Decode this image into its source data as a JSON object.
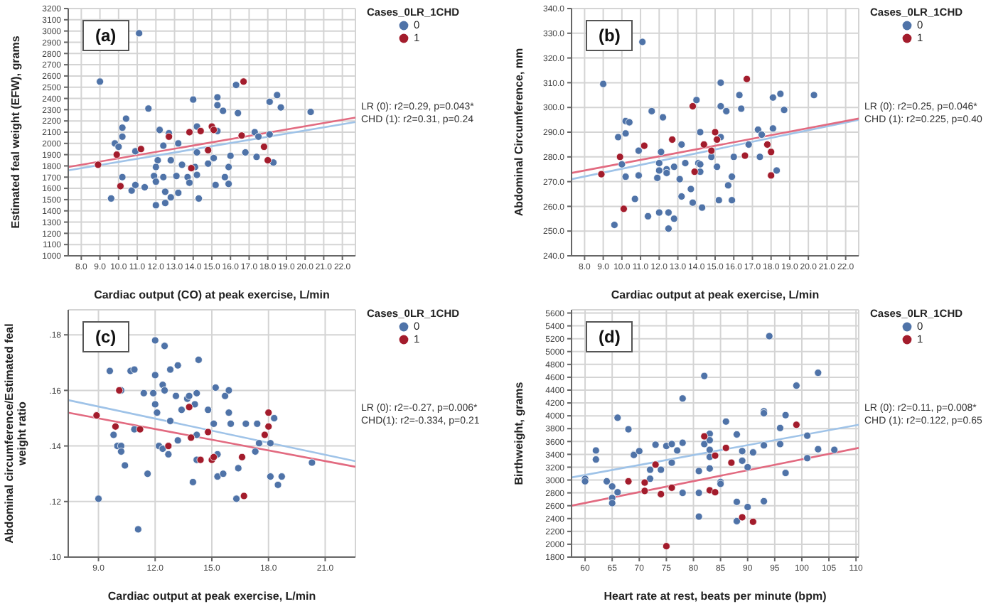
{
  "chart_data": [
    {
      "type": "scatter",
      "title": "(a)",
      "xlabel": "Cardiac output (CO) at peak exercise, L/min",
      "ylabel": "Estimated feal weight (EFW), grams",
      "legend_title": "Cases_0LR_1CHD",
      "legend": "top right",
      "grid": true,
      "marker": "circle",
      "xlim": [
        7.3,
        22.7
      ],
      "xticks": [
        {
          "value": 8,
          "label": "8.0"
        },
        {
          "value": 9,
          "label": "9.0"
        },
        {
          "value": 10,
          "label": "10.0"
        },
        {
          "value": 11,
          "label": "11.0"
        },
        {
          "value": 12,
          "label": "12.0"
        },
        {
          "value": 13,
          "label": "13.0"
        },
        {
          "value": 14,
          "label": "14.0"
        },
        {
          "value": 15,
          "label": "15.0"
        },
        {
          "value": 16,
          "label": "16.0"
        },
        {
          "value": 17,
          "label": "17.0"
        },
        {
          "value": 18,
          "label": "18.0"
        },
        {
          "value": 19,
          "label": "19.0"
        },
        {
          "value": 20,
          "label": "20.0"
        },
        {
          "value": 21,
          "label": "21.0"
        },
        {
          "value": 22,
          "label": "22.0"
        }
      ],
      "ylim": [
        1000,
        3200
      ],
      "yticks": [
        1000,
        1100,
        1200,
        1300,
        1400,
        1500,
        1600,
        1700,
        1800,
        1900,
        2000,
        2100,
        2200,
        2300,
        2400,
        2500,
        2600,
        2700,
        2800,
        2900,
        3000,
        3100,
        3200
      ],
      "annotations": [
        "LR (0): r2=0.29, p=0.043*",
        "CHD (1): r2=0.31, p=0.24"
      ],
      "series": [
        {
          "name": "0",
          "color": "#4f73a8",
          "x": [
            9.0,
            11.1,
            9.6,
            9.8,
            10.0,
            10.2,
            10.2,
            10.4,
            10.2,
            10.7,
            10.9,
            10.9,
            11.4,
            11.6,
            11.9,
            12.0,
            12.0,
            12.0,
            12.1,
            12.2,
            12.4,
            12.4,
            12.5,
            12.5,
            12.7,
            12.8,
            12.8,
            13.1,
            13.2,
            13.2,
            13.4,
            13.7,
            13.8,
            14.0,
            14.1,
            14.2,
            14.2,
            14.2,
            14.3,
            14.8,
            15.1,
            15.2,
            15.3,
            15.3,
            15.3,
            15.6,
            15.7,
            15.9,
            15.9,
            16.0,
            16.3,
            16.4,
            16.8,
            17.3,
            17.4,
            17.5,
            18.1,
            18.1,
            18.3,
            18.5,
            18.7,
            20.3
          ],
          "values": [
            2550,
            2980,
            1510,
            2000,
            1970,
            2060,
            2140,
            2220,
            1700,
            1580,
            1630,
            1930,
            1610,
            2310,
            1710,
            1660,
            1790,
            1450,
            1850,
            2120,
            1700,
            1980,
            1570,
            1470,
            2090,
            1850,
            1520,
            1710,
            2000,
            1560,
            1810,
            1700,
            1650,
            2390,
            1790,
            2150,
            1920,
            1720,
            1510,
            1820,
            1870,
            1630,
            2410,
            2340,
            2110,
            2290,
            1700,
            1640,
            1790,
            1890,
            2520,
            2270,
            1920,
            2100,
            1880,
            2060,
            2370,
            2080,
            1830,
            2430,
            2320,
            2280
          ]
        },
        {
          "name": "1",
          "color": "#a31c2c",
          "x": [
            8.9,
            9.9,
            10.1,
            11.2,
            12.7,
            13.8,
            13.9,
            14.4,
            14.8,
            15.0,
            15.1,
            16.6,
            16.7,
            17.8,
            18.0
          ],
          "values": [
            1810,
            1900,
            1620,
            1950,
            2060,
            2100,
            1780,
            2110,
            1940,
            2150,
            2120,
            2070,
            2550,
            1970,
            1850
          ]
        },
        {
          "type": "line",
          "marker": "none",
          "color": "#9fc3e8",
          "x": [
            7.3,
            22.7
          ],
          "values": [
            1760,
            2190
          ]
        },
        {
          "type": "line",
          "marker": "none",
          "color": "#e26a80",
          "x": [
            7.3,
            22.7
          ],
          "values": [
            1790,
            2230
          ]
        }
      ]
    },
    {
      "type": "scatter",
      "title": "(b)",
      "xlabel": "Cardiac output at peak exercise, L/min",
      "ylabel": "Abdominal Circumference, mm",
      "legend_title": "Cases_0LR_1CHD",
      "legend": "top right",
      "grid": true,
      "marker": "circle",
      "xlim": [
        7.3,
        22.7
      ],
      "xticks": [
        {
          "value": 8,
          "label": "8.0"
        },
        {
          "value": 9,
          "label": "9.0"
        },
        {
          "value": 10,
          "label": "10.0"
        },
        {
          "value": 11,
          "label": "11.0"
        },
        {
          "value": 12,
          "label": "12.0"
        },
        {
          "value": 13,
          "label": "13.0"
        },
        {
          "value": 14,
          "label": "14.0"
        },
        {
          "value": 15,
          "label": "15.0"
        },
        {
          "value": 16,
          "label": "16.0"
        },
        {
          "value": 17,
          "label": "17.0"
        },
        {
          "value": 18,
          "label": "18.0"
        },
        {
          "value": 19,
          "label": "19.0"
        },
        {
          "value": 20,
          "label": "20.0"
        },
        {
          "value": 21,
          "label": "21.0"
        },
        {
          "value": 22,
          "label": "22.0"
        }
      ],
      "ylim": [
        240,
        340
      ],
      "yticks": [
        {
          "value": 240,
          "label": "240.0"
        },
        {
          "value": 250,
          "label": "250.0"
        },
        {
          "value": 260,
          "label": "260.0"
        },
        {
          "value": 270,
          "label": "270.0"
        },
        {
          "value": 280,
          "label": "280.0"
        },
        {
          "value": 290,
          "label": "290.0"
        },
        {
          "value": 300,
          "label": "300.0"
        },
        {
          "value": 310,
          "label": "310.0"
        },
        {
          "value": 320,
          "label": "320.0"
        },
        {
          "value": 330,
          "label": "330.0"
        },
        {
          "value": 340,
          "label": "340.0"
        }
      ],
      "annotations": [
        "LR (0): r2=0.25, p=0.046*",
        "CHD (1): r2=0.225, p=0.40"
      ],
      "series": [
        {
          "name": "0",
          "color": "#4f73a8",
          "x": [
            9.0,
            11.1,
            9.6,
            9.8,
            10.0,
            10.2,
            10.2,
            10.4,
            10.2,
            10.7,
            10.9,
            10.9,
            11.4,
            11.6,
            11.9,
            12.0,
            12.0,
            12.0,
            12.1,
            12.2,
            12.4,
            12.4,
            12.5,
            12.5,
            12.8,
            12.8,
            13.1,
            13.2,
            13.2,
            13.4,
            13.7,
            13.8,
            14.0,
            14.1,
            14.2,
            14.2,
            14.2,
            14.3,
            14.8,
            15.1,
            15.2,
            15.3,
            15.3,
            15.3,
            15.6,
            15.7,
            15.9,
            15.9,
            16.0,
            16.3,
            16.4,
            16.8,
            17.3,
            17.4,
            17.5,
            18.1,
            18.1,
            18.3,
            18.5,
            18.7,
            20.3
          ],
          "values": [
            309.5,
            326.5,
            252.5,
            288,
            277,
            294.5,
            289.5,
            294,
            272,
            263,
            272.5,
            282.5,
            256,
            298.5,
            271.5,
            274.5,
            277.5,
            257.5,
            282,
            296,
            275,
            273.5,
            257.5,
            251,
            276,
            255,
            271,
            285,
            264,
            277.5,
            267,
            261.5,
            303,
            277.5,
            290,
            277,
            274,
            259.5,
            280,
            276,
            262.5,
            310,
            300.5,
            288,
            298.5,
            268.5,
            272,
            262.5,
            280,
            305,
            299.5,
            285,
            291,
            280,
            289,
            304,
            291.5,
            274.5,
            305.5,
            299,
            305
          ]
        },
        {
          "name": "1",
          "color": "#a31c2c",
          "x": [
            8.9,
            9.9,
            10.1,
            11.2,
            12.7,
            13.8,
            13.9,
            14.4,
            14.8,
            15.0,
            15.1,
            16.6,
            16.7,
            17.8,
            18.0,
            18.0
          ],
          "values": [
            273,
            280,
            259,
            284.5,
            287,
            300.5,
            274,
            285,
            282.5,
            290,
            287,
            280.5,
            311.5,
            285,
            282,
            272.5
          ]
        },
        {
          "type": "line",
          "marker": "none",
          "color": "#9fc3e8",
          "x": [
            7.3,
            22.7
          ],
          "values": [
            271,
            295
          ]
        },
        {
          "type": "line",
          "marker": "none",
          "color": "#e26a80",
          "x": [
            7.3,
            22.7
          ],
          "values": [
            273.5,
            295.5
          ]
        }
      ]
    },
    {
      "type": "scatter",
      "title": "(c)",
      "xlabel": "Cardiac output at peak exercise, L/min",
      "ylabel": "Abdominal circumference/Estimated feal weight ratio",
      "legend_title": "Cases_0LR_1CHD",
      "legend": "top right",
      "grid": true,
      "marker": "circle",
      "xlim": [
        7.4,
        22.6
      ],
      "xticks": [
        {
          "value": 9,
          "label": "9.0"
        },
        {
          "value": 12,
          "label": "12.0"
        },
        {
          "value": 15,
          "label": "15.0"
        },
        {
          "value": 18,
          "label": "18.0"
        },
        {
          "value": 21,
          "label": "21.0"
        }
      ],
      "ylim": [
        0.1,
        0.189
      ],
      "yticks": [
        {
          "value": 0.1,
          "label": ".10"
        },
        {
          "value": 0.12,
          "label": ".12"
        },
        {
          "value": 0.14,
          "label": ".14"
        },
        {
          "value": 0.16,
          "label": ".16"
        },
        {
          "value": 0.18,
          "label": ".18"
        }
      ],
      "annotations": [
        "LR (0): r2=-0.27, p=0.006*",
        "CHD(1): r2=-0.334, p=0.21"
      ],
      "series": [
        {
          "name": "0",
          "color": "#4f73a8",
          "x": [
            9.0,
            9.6,
            9.8,
            10.0,
            10.2,
            10.2,
            10.4,
            10.2,
            10.7,
            10.9,
            10.9,
            11.1,
            11.4,
            11.6,
            11.9,
            12.0,
            12.0,
            12.0,
            12.1,
            12.2,
            12.4,
            12.4,
            12.5,
            12.5,
            12.7,
            12.8,
            12.8,
            13.1,
            13.2,
            13.2,
            13.4,
            13.7,
            13.8,
            14.0,
            14.1,
            14.2,
            14.2,
            14.2,
            14.3,
            14.8,
            15.1,
            15.2,
            15.3,
            15.3,
            15.6,
            15.7,
            15.9,
            15.9,
            16.0,
            16.3,
            16.4,
            16.8,
            17.3,
            17.4,
            17.5,
            18.1,
            18.1,
            18.3,
            18.5,
            18.7,
            20.3
          ],
          "values": [
            0.121,
            0.167,
            0.144,
            0.14,
            0.14,
            0.138,
            0.133,
            0.16,
            0.167,
            0.1675,
            0.146,
            0.11,
            0.159,
            0.13,
            0.159,
            0.178,
            0.1655,
            0.155,
            0.152,
            0.14,
            0.139,
            0.162,
            0.176,
            0.16,
            0.137,
            0.149,
            0.1675,
            0.158,
            0.169,
            0.142,
            0.153,
            0.157,
            0.158,
            0.127,
            0.155,
            0.159,
            0.144,
            0.135,
            0.171,
            0.153,
            0.148,
            0.161,
            0.137,
            0.129,
            0.13,
            0.158,
            0.152,
            0.16,
            0.148,
            0.121,
            0.132,
            0.148,
            0.138,
            0.148,
            0.141,
            0.141,
            0.129,
            0.15,
            0.126,
            0.129,
            0.134
          ]
        },
        {
          "name": "1",
          "color": "#a31c2c",
          "x": [
            8.9,
            9.9,
            10.1,
            11.2,
            12.7,
            13.8,
            13.9,
            14.4,
            14.8,
            15.0,
            15.1,
            16.6,
            16.7,
            17.8,
            18.0,
            18.0
          ],
          "values": [
            0.151,
            0.147,
            0.16,
            0.146,
            0.14,
            0.154,
            0.143,
            0.135,
            0.145,
            0.135,
            0.136,
            0.136,
            0.122,
            0.144,
            0.152,
            0.147
          ]
        },
        {
          "type": "line",
          "marker": "none",
          "color": "#9fc3e8",
          "x": [
            7.4,
            22.6
          ],
          "values": [
            0.1565,
            0.1345
          ]
        },
        {
          "type": "line",
          "marker": "none",
          "color": "#e26a80",
          "x": [
            7.4,
            22.6
          ],
          "values": [
            0.152,
            0.1325
          ]
        }
      ]
    },
    {
      "type": "scatter",
      "title": "(d)",
      "xlabel": "Heart rate at rest, beats per minute (bpm)",
      "ylabel": "Birthweight, grams",
      "legend_title": "Cases_0LR_1CHD",
      "legend": "top right",
      "grid": true,
      "marker": "circle",
      "xlim": [
        57.5,
        110.5
      ],
      "xticks": [
        60,
        65,
        70,
        75,
        80,
        85,
        90,
        95,
        100,
        105,
        110
      ],
      "ylim": [
        1800,
        5650
      ],
      "yticks": [
        1800,
        2000,
        2200,
        2400,
        2600,
        2800,
        3000,
        3200,
        3400,
        3600,
        3800,
        4000,
        4200,
        4400,
        4600,
        4800,
        5000,
        5200,
        5400,
        5600
      ],
      "annotations": [
        "LR (0): r2=0.11, p=0.008*",
        "CHD (1): r2=0.122, p=0.65"
      ],
      "series": [
        {
          "name": "0",
          "color": "#4f73a8",
          "x": [
            60,
            60,
            62,
            62,
            64,
            65,
            65,
            65,
            66,
            66,
            68,
            69,
            69,
            70,
            72,
            72,
            73,
            74,
            75,
            76,
            76,
            77,
            78,
            78,
            78,
            81,
            81,
            81,
            82,
            82,
            83,
            83,
            83,
            83,
            83,
            85,
            85,
            86,
            88,
            88,
            88,
            89,
            89,
            90,
            90,
            91,
            93,
            93,
            93,
            93,
            94,
            96,
            96,
            97,
            97,
            99,
            101,
            101,
            103,
            103,
            106
          ],
          "values": [
            3020,
            2980,
            3460,
            3320,
            2980,
            2900,
            2720,
            2640,
            3970,
            2810,
            3790,
            3400,
            3390,
            3450,
            3160,
            3020,
            3550,
            3160,
            3530,
            3560,
            3270,
            3460,
            4270,
            3580,
            2800,
            3140,
            2800,
            2430,
            4620,
            3560,
            3720,
            3620,
            3470,
            3360,
            3180,
            2970,
            2940,
            3910,
            3710,
            2660,
            2360,
            3450,
            3300,
            3200,
            2580,
            3430,
            4070,
            4040,
            3540,
            2670,
            5240,
            3810,
            3560,
            4010,
            3110,
            4470,
            3690,
            3340,
            4670,
            3480,
            3470
          ]
        },
        {
          "name": "1",
          "color": "#a31c2c",
          "x": [
            68,
            71,
            71,
            73,
            74,
            75,
            76,
            82,
            83,
            84,
            84,
            86,
            87,
            89,
            91,
            99
          ],
          "values": [
            2980,
            2960,
            2830,
            3240,
            2780,
            1970,
            2880,
            3680,
            2840,
            2810,
            3380,
            3500,
            3270,
            2420,
            2350,
            3860
          ]
        },
        {
          "type": "line",
          "marker": "none",
          "color": "#9fc3e8",
          "x": [
            57.5,
            110.5
          ],
          "values": [
            3040,
            3860
          ]
        },
        {
          "type": "line",
          "marker": "none",
          "color": "#e26a80",
          "x": [
            57.5,
            110.5
          ],
          "values": [
            2600,
            3500
          ]
        }
      ]
    }
  ]
}
